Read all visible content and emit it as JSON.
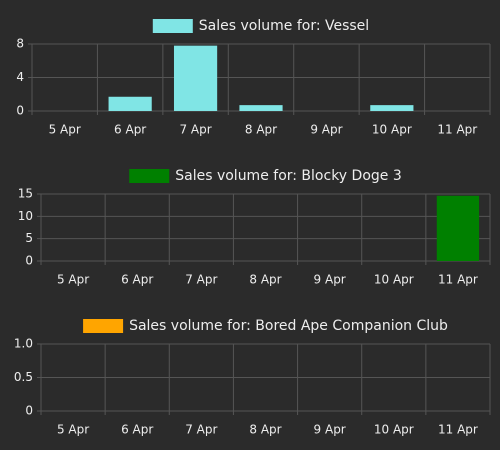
{
  "chart_data": [
    {
      "type": "bar",
      "legend": "Sales volume for: Vessel",
      "color": "#80e5e5",
      "categories": [
        "5 Apr",
        "6 Apr",
        "7 Apr",
        "8 Apr",
        "9 Apr",
        "10 Apr",
        "11 Apr"
      ],
      "values": [
        0,
        1.7,
        7.8,
        0.7,
        0,
        0.7,
        0
      ],
      "ylim": [
        0,
        8
      ],
      "yticks": [
        0,
        4,
        8
      ],
      "grid": true
    },
    {
      "type": "bar",
      "legend": "Sales volume for: Blocky Doge 3",
      "color": "#008000",
      "categories": [
        "5 Apr",
        "6 Apr",
        "7 Apr",
        "8 Apr",
        "9 Apr",
        "10 Apr",
        "11 Apr"
      ],
      "values": [
        0,
        0,
        0,
        0,
        0,
        0,
        14.6
      ],
      "ylim": [
        0,
        15
      ],
      "yticks": [
        0,
        5,
        10,
        15
      ],
      "grid": true
    },
    {
      "type": "bar",
      "legend": "Sales volume for: Bored Ape Companion Club",
      "color": "#ffa500",
      "categories": [
        "5 Apr",
        "6 Apr",
        "7 Apr",
        "8 Apr",
        "9 Apr",
        "10 Apr",
        "11 Apr"
      ],
      "values": [
        0,
        0,
        0,
        0,
        0,
        0,
        0
      ],
      "ylim": [
        0,
        1
      ],
      "yticks": [
        0,
        0.5,
        {
          "value": 1,
          "label": "1.0"
        }
      ],
      "grid": true
    }
  ]
}
